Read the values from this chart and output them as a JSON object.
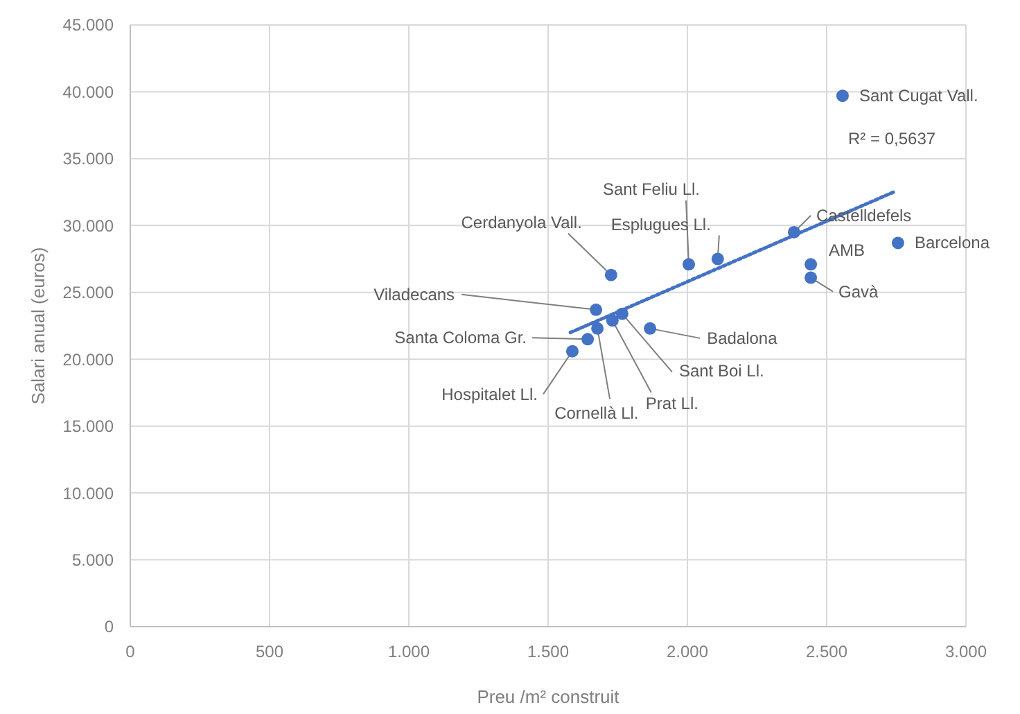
{
  "chart_data": {
    "type": "scatter",
    "xlabel": "Preu /m² construit",
    "ylabel": "Salari anual (euros)",
    "x": [
      2557,
      2756,
      2443,
      2443,
      2383,
      2109,
      2005,
      1726,
      1672,
      1642,
      1587,
      1677,
      1731,
      1766,
      1866
    ],
    "series": [
      {
        "color": "#4472c4",
        "marker": "circle",
        "values": [
          39700,
          28700,
          27100,
          26100,
          29500,
          27500,
          27100,
          26300,
          23700,
          21500,
          20600,
          22300,
          22900,
          23400,
          22300
        ]
      },
      {
        "type": "line",
        "color": "#4472c4",
        "marker": "none",
        "line_style": "dotted",
        "x": [
          1580,
          2740
        ],
        "values": [
          22000,
          32500
        ]
      }
    ],
    "xlim": [
      0,
      3000
    ],
    "ylim": [
      0,
      45000
    ],
    "xticks": [
      0,
      500,
      {
        "value": 1000,
        "label": "1.000"
      },
      {
        "value": 1500,
        "label": "1.500"
      },
      {
        "value": 2000,
        "label": "2.000"
      },
      {
        "value": 2500,
        "label": "2.500"
      },
      {
        "value": 3000,
        "label": "3.000"
      }
    ],
    "yticks": [
      0,
      {
        "value": 5000,
        "label": "5.000"
      },
      {
        "value": 10000,
        "label": "10.000"
      },
      {
        "value": 15000,
        "label": "15.000"
      },
      {
        "value": 20000,
        "label": "20.000"
      },
      {
        "value": 25000,
        "label": "25.000"
      },
      {
        "value": 30000,
        "label": "30.000"
      },
      {
        "value": 35000,
        "label": "35.000"
      },
      {
        "value": 40000,
        "label": "40.000"
      },
      {
        "value": 45000,
        "label": "45.000"
      }
    ],
    "grid": true,
    "annotations": [
      {
        "text": "Sant Cugat Vall.",
        "x": 2557,
        "y": 39700
      },
      {
        "text": "Barcelona",
        "x": 2756,
        "y": 28700
      },
      {
        "text": "AMB",
        "x": 2443,
        "y": 27100
      },
      {
        "text": "Gavà",
        "x": 2443,
        "y": 26100
      },
      {
        "text": "Castelldefels",
        "x": 2383,
        "y": 29500
      },
      {
        "text": "Esplugues Ll.",
        "x": 2109,
        "y": 27500
      },
      {
        "text": "Sant Feliu Ll.",
        "x": 2005,
        "y": 27100
      },
      {
        "text": "Cerdanyola Vall.",
        "x": 1726,
        "y": 26300
      },
      {
        "text": "Viladecans",
        "x": 1672,
        "y": 23700
      },
      {
        "text": "Santa Coloma Gr.",
        "x": 1642,
        "y": 21500
      },
      {
        "text": "Hospitalet Ll.",
        "x": 1587,
        "y": 20600
      },
      {
        "text": "Cornellà Ll.",
        "x": 1677,
        "y": 22300
      },
      {
        "text": "Prat Ll.",
        "x": 1731,
        "y": 22900
      },
      {
        "text": "Sant Boi Ll.",
        "x": 1766,
        "y": 23400
      },
      {
        "text": "Badalona",
        "x": 1866,
        "y": 22300
      },
      "R² = 0,5637"
    ]
  }
}
